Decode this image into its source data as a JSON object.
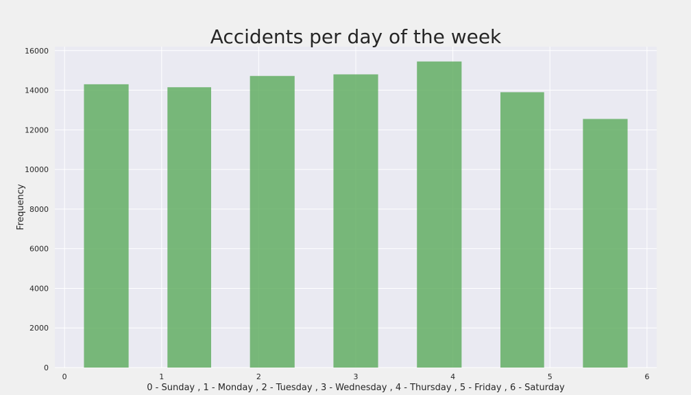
{
  "chart_data": {
    "type": "bar",
    "title": "Accidents per day of the week",
    "xlabel": "0 - Sunday , 1 - Monday , 2 - Tuesday , 3 - Wednesday , 4 - Thursday , 5 - Friday , 6 - Saturday",
    "ylabel": "Frequency",
    "xlim": [
      -0.1,
      6.1
    ],
    "ylim": [
      0,
      16200
    ],
    "xticks": [
      0,
      1,
      2,
      3,
      4,
      5,
      6
    ],
    "yticks": [
      0,
      2000,
      4000,
      6000,
      8000,
      10000,
      12000,
      14000,
      16000
    ],
    "bins": [
      {
        "x0": 0.2,
        "x1": 0.66,
        "value": 14300
      },
      {
        "x0": 1.06,
        "x1": 1.51,
        "value": 14150
      },
      {
        "x0": 1.91,
        "x1": 2.37,
        "value": 14720
      },
      {
        "x0": 2.77,
        "x1": 3.23,
        "value": 14800
      },
      {
        "x0": 3.63,
        "x1": 4.09,
        "value": 15450
      },
      {
        "x0": 4.49,
        "x1": 4.94,
        "value": 13900
      },
      {
        "x0": 5.34,
        "x1": 5.8,
        "value": 12550
      }
    ],
    "bar_color": "#5aaa5a",
    "background_color": "#eaeaf2",
    "grid": true,
    "legend": "none"
  }
}
